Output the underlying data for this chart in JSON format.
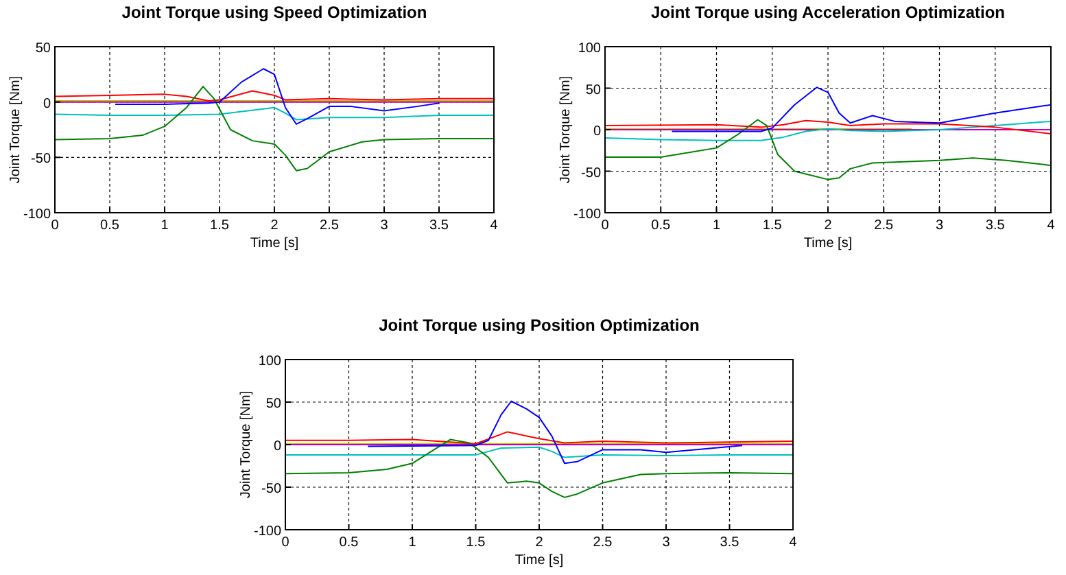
{
  "chart_data": [
    {
      "type": "line",
      "title": "Joint Torque using Speed Optimization",
      "xlabel": "Time [s]",
      "ylabel": "Joint Torque [Nm]",
      "xlim": [
        0,
        4
      ],
      "xticks": [
        0,
        0.5,
        1,
        1.5,
        2,
        2.5,
        3,
        3.5,
        4
      ],
      "ylim": [
        -100,
        50
      ],
      "yticks": [
        -100,
        -50,
        0,
        50
      ],
      "grid": true,
      "line_style": "solid",
      "marker": "none",
      "series": [
        {
          "color": "#bfbf00",
          "x": [
            0,
            4
          ],
          "values": [
            1,
            1
          ]
        },
        {
          "color": "#bf00bf",
          "x": [
            0,
            4
          ],
          "values": [
            0,
            0
          ]
        },
        {
          "color": "#00bfbf",
          "x": [
            0,
            0.5,
            1,
            1.5,
            2.0,
            2.1,
            2.2,
            2.5,
            3,
            3.5,
            4
          ],
          "values": [
            -11,
            -12,
            -12,
            -11,
            -5,
            -10,
            -16,
            -14,
            -14,
            -12,
            -12
          ]
        },
        {
          "color": "#ff0000",
          "x": [
            0,
            0.5,
            1.0,
            1.2,
            1.4,
            1.5,
            1.8,
            2.0,
            2.1,
            2.5,
            3.0,
            3.5,
            4
          ],
          "values": [
            5,
            6,
            7,
            5,
            1,
            2,
            10,
            6,
            2,
            3,
            2,
            3,
            3
          ]
        },
        {
          "color": "#008000",
          "x": [
            0,
            0.5,
            0.8,
            1.0,
            1.2,
            1.35,
            1.45,
            1.6,
            1.8,
            2.0,
            2.1,
            2.2,
            2.3,
            2.5,
            2.8,
            3,
            3.5,
            4
          ],
          "values": [
            -34,
            -33,
            -30,
            -22,
            -5,
            14,
            3,
            -25,
            -35,
            -38,
            -48,
            -62,
            -60,
            -45,
            -36,
            -34,
            -33,
            -33
          ]
        },
        {
          "color": "#0000ff",
          "x": [
            0.55,
            1.0,
            1.4,
            1.5,
            1.7,
            1.9,
            2.0,
            2.1,
            2.2,
            2.3,
            2.5,
            2.7,
            3.0,
            3.3,
            3.5
          ],
          "values": [
            -2,
            -2,
            -1,
            0,
            18,
            30,
            25,
            -5,
            -20,
            -15,
            -4,
            -4,
            -8,
            -4,
            -1
          ]
        }
      ]
    },
    {
      "type": "line",
      "title": "Joint Torque using Acceleration Optimization",
      "xlabel": "Time [s]",
      "ylabel": "Joint Torque [Nm]",
      "xlim": [
        0,
        4
      ],
      "xticks": [
        0,
        0.5,
        1,
        1.5,
        2,
        2.5,
        3,
        3.5,
        4
      ],
      "ylim": [
        -100,
        100
      ],
      "yticks": [
        -100,
        -50,
        0,
        50,
        100
      ],
      "grid": true,
      "line_style": "solid",
      "marker": "none",
      "series": [
        {
          "color": "#bfbf00",
          "x": [
            0,
            2.75
          ],
          "values": [
            1,
            1
          ]
        },
        {
          "color": "#bf00bf",
          "x": [
            0,
            4
          ],
          "values": [
            0,
            0
          ]
        },
        {
          "color": "#00bfbf",
          "x": [
            0,
            0.5,
            1.0,
            1.4,
            1.6,
            1.8,
            2.0,
            2.2,
            2.5,
            3,
            3.5,
            4
          ],
          "values": [
            -10,
            -12,
            -13,
            -13,
            -9,
            -2,
            1,
            -1,
            -2,
            0,
            5,
            10
          ]
        },
        {
          "color": "#ff0000",
          "x": [
            0,
            1.0,
            1.4,
            1.6,
            1.8,
            2.0,
            2.2,
            2.5,
            3,
            3.5,
            4
          ],
          "values": [
            5,
            6,
            3,
            6,
            11,
            9,
            5,
            7,
            7,
            3,
            -5
          ]
        },
        {
          "color": "#008000",
          "x": [
            0,
            0.5,
            1.0,
            1.2,
            1.37,
            1.45,
            1.55,
            1.7,
            2.0,
            2.1,
            2.2,
            2.4,
            2.6,
            3,
            3.3,
            3.6,
            4
          ],
          "values": [
            -33,
            -33,
            -22,
            -5,
            12,
            5,
            -30,
            -50,
            -60,
            -58,
            -47,
            -40,
            -39,
            -37,
            -34,
            -37,
            -43
          ]
        },
        {
          "color": "#0000ff",
          "x": [
            0.6,
            1.4,
            1.5,
            1.7,
            1.9,
            2.0,
            2.1,
            2.2,
            2.4,
            2.6,
            3.0,
            3.5,
            4
          ],
          "values": [
            -2,
            -2,
            2,
            30,
            51,
            45,
            20,
            8,
            17,
            10,
            8,
            20,
            30
          ]
        }
      ]
    },
    {
      "type": "line",
      "title": "Joint Torque using Position Optimization",
      "xlabel": "Time [s]",
      "ylabel": "Joint Torque [Nm]",
      "xlim": [
        0,
        4
      ],
      "xticks": [
        0,
        0.5,
        1,
        1.5,
        2,
        2.5,
        3,
        3.5,
        4
      ],
      "ylim": [
        -100,
        100
      ],
      "yticks": [
        -100,
        -50,
        0,
        50,
        100
      ],
      "grid": true,
      "line_style": "solid",
      "marker": "none",
      "series": [
        {
          "color": "#bfbf00",
          "x": [
            0,
            4
          ],
          "values": [
            1,
            1
          ]
        },
        {
          "color": "#bf00bf",
          "x": [
            0,
            4
          ],
          "values": [
            0,
            0
          ]
        },
        {
          "color": "#00bfbf",
          "x": [
            0,
            1,
            1.5,
            1.7,
            2.0,
            2.1,
            2.2,
            2.5,
            3,
            3.5,
            4
          ],
          "values": [
            -12,
            -12,
            -12,
            -4,
            -3,
            -8,
            -15,
            -12,
            -13,
            -12,
            -12
          ]
        },
        {
          "color": "#ff0000",
          "x": [
            0,
            0.5,
            1,
            1.3,
            1.5,
            1.75,
            2.0,
            2.2,
            2.5,
            3,
            3.5,
            4
          ],
          "values": [
            5,
            5,
            6,
            3,
            1,
            15,
            7,
            2,
            4,
            2,
            3,
            4
          ]
        },
        {
          "color": "#008000",
          "x": [
            0,
            0.5,
            0.8,
            1.0,
            1.15,
            1.3,
            1.45,
            1.6,
            1.75,
            1.9,
            2.0,
            2.1,
            2.2,
            2.3,
            2.5,
            2.8,
            3,
            3.5,
            4
          ],
          "values": [
            -34,
            -33,
            -29,
            -22,
            -8,
            6,
            2,
            -15,
            -45,
            -43,
            -45,
            -55,
            -62,
            -58,
            -45,
            -35,
            -34,
            -33,
            -34
          ]
        },
        {
          "color": "#0000ff",
          "x": [
            0.65,
            1.5,
            1.6,
            1.7,
            1.78,
            1.9,
            2.0,
            2.1,
            2.2,
            2.3,
            2.5,
            2.8,
            3.0,
            3.3,
            3.6
          ],
          "values": [
            -2,
            -1,
            5,
            35,
            51,
            42,
            32,
            10,
            -22,
            -20,
            -6,
            -6,
            -9,
            -5,
            -1
          ]
        }
      ]
    }
  ]
}
